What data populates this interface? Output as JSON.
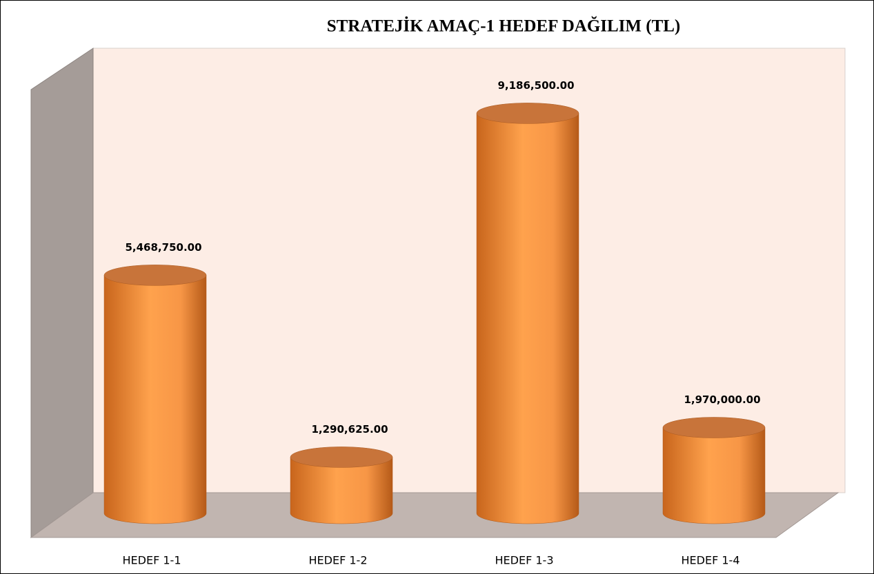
{
  "chart_data": {
    "type": "bar",
    "title": "STRATEJİK AMAÇ-1 HEDEF DAĞILIM (TL)",
    "categories": [
      "HEDEF 1-1",
      "HEDEF 1-2",
      "HEDEF 1-3",
      "HEDEF 1-4"
    ],
    "values": [
      5468750,
      1290625,
      9186500,
      1970000
    ],
    "value_labels": [
      "5,468,750.00",
      "1,290,625.00",
      "9,186,500.00",
      "1,970,000.00"
    ],
    "color": "#f79646",
    "ylim": [
      0,
      10000000
    ]
  }
}
